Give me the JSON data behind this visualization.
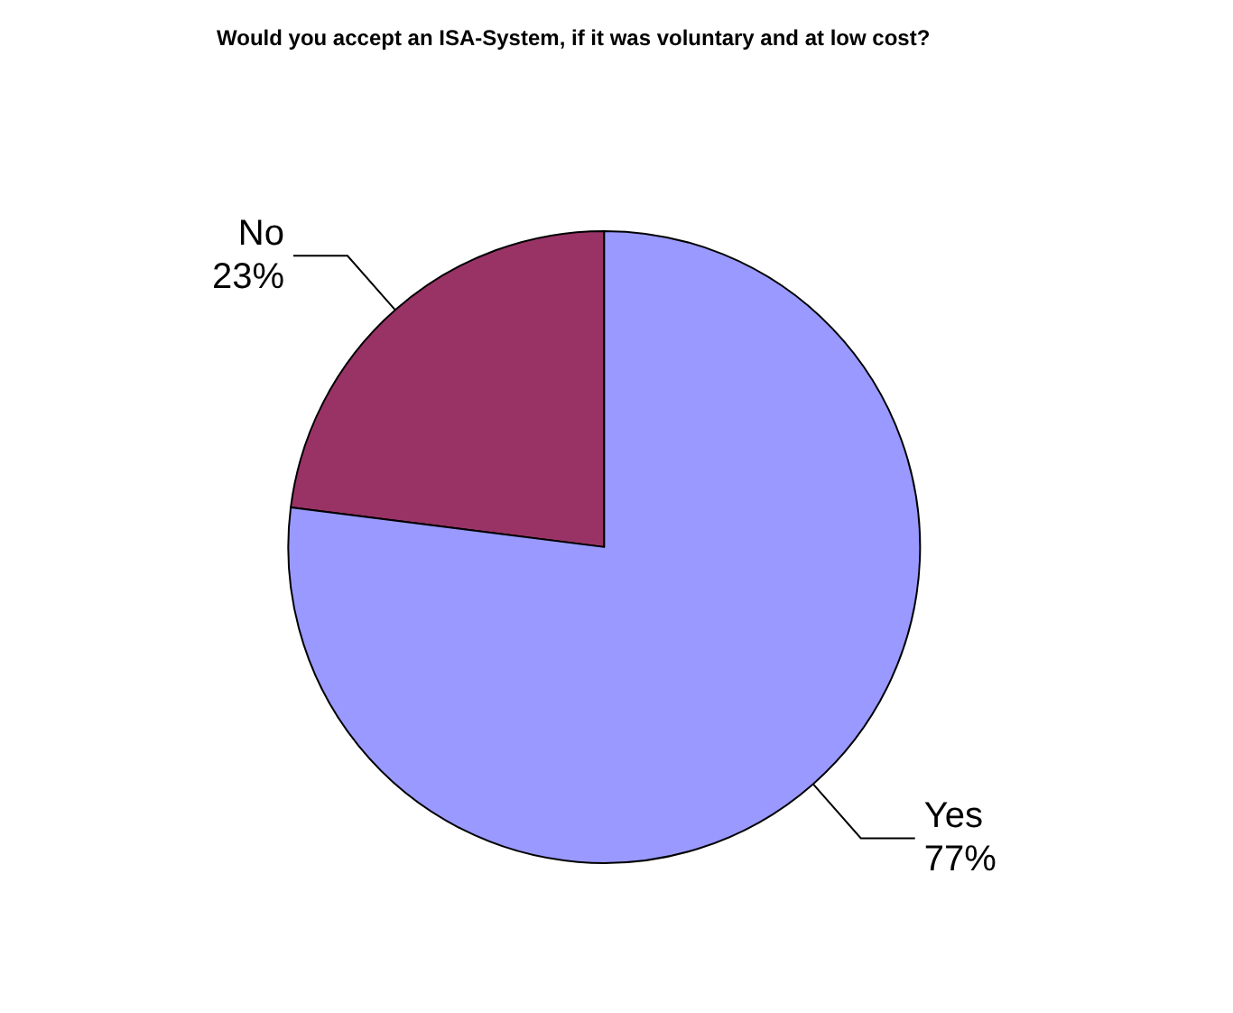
{
  "chart_data": {
    "type": "pie",
    "title": "Would you accept an ISA-System, if it was voluntary and at low cost?",
    "categories": [
      "No",
      "Yes"
    ],
    "values": [
      23,
      77
    ],
    "colors": [
      "#993366",
      "#9999ff"
    ],
    "value_labels": [
      "23%",
      "77%"
    ]
  }
}
